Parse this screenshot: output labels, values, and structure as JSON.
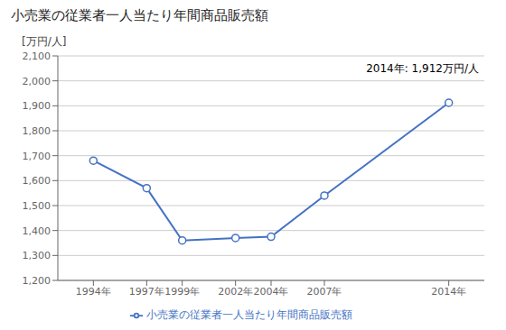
{
  "chart_data": {
    "type": "line",
    "title": "小売業の従業者一人当たり年間商品販売額",
    "y_label": "[万円/人]",
    "annotation": "2014年: 1,912万円/人",
    "x": [
      1994,
      1997,
      1999,
      2002,
      2004,
      2007,
      2014
    ],
    "series": [
      {
        "name": "小売業の従業者一人当たり年間商品販売額",
        "color": "#4472C4",
        "marker": "circle",
        "line_style": "solid",
        "values": [
          1680,
          1570,
          1360,
          1370,
          1375,
          1540,
          1912
        ]
      }
    ],
    "xlim": [
      1992,
      2016
    ],
    "xticks": [
      {
        "value": 1994,
        "label": "1994年"
      },
      {
        "value": 1997,
        "label": "1997年"
      },
      {
        "value": 1999,
        "label": "1999年"
      },
      {
        "value": 2002,
        "label": "2002年"
      },
      {
        "value": 2004,
        "label": "2004年"
      },
      {
        "value": 2007,
        "label": "2007年"
      },
      {
        "value": 2014,
        "label": "2014年"
      }
    ],
    "ylim": [
      1200,
      2100
    ],
    "yticks": [
      {
        "value": 1200,
        "label": "1,200"
      },
      {
        "value": 1300,
        "label": "1,300"
      },
      {
        "value": 1400,
        "label": "1,400"
      },
      {
        "value": 1500,
        "label": "1,500"
      },
      {
        "value": 1600,
        "label": "1,600"
      },
      {
        "value": 1700,
        "label": "1,700"
      },
      {
        "value": 1800,
        "label": "1,800"
      },
      {
        "value": 1900,
        "label": "1,900"
      },
      {
        "value": 2000,
        "label": "2,000"
      },
      {
        "value": 2100,
        "label": "2,100"
      }
    ],
    "grid": true
  }
}
